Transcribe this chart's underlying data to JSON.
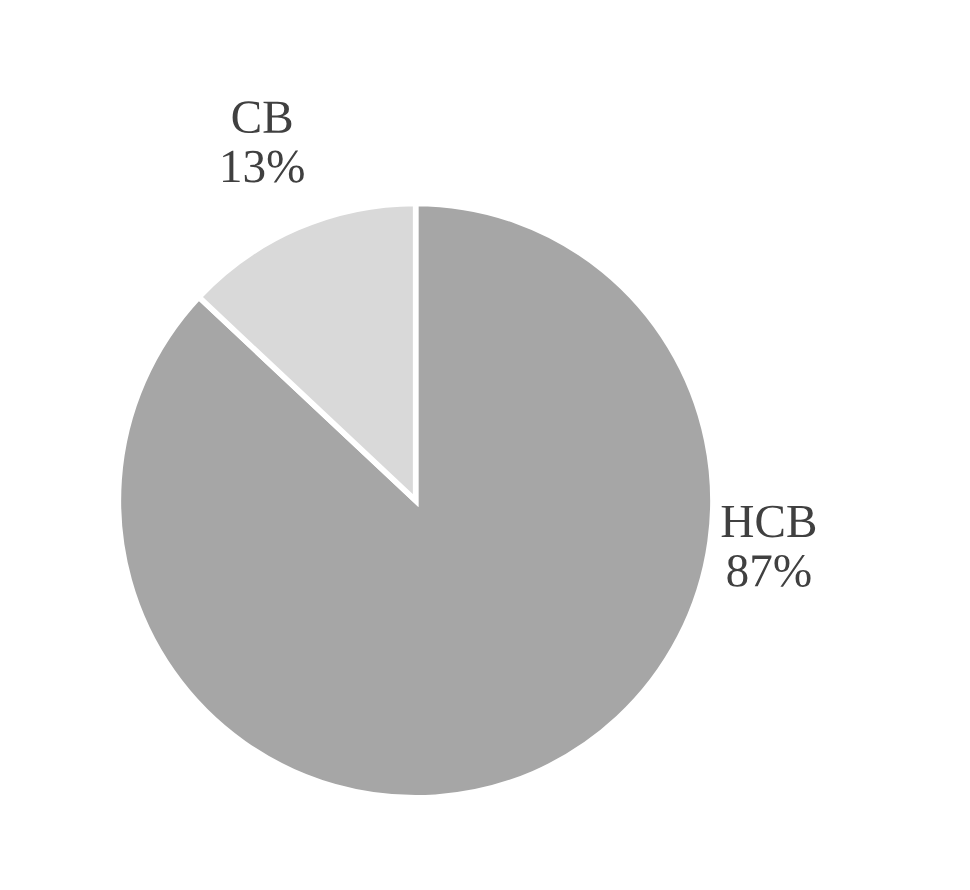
{
  "chart_data": {
    "type": "pie",
    "categories": [
      "HCB",
      "CB"
    ],
    "values": [
      87,
      13
    ],
    "colors": [
      "#a6a6a6",
      "#d9d9d9"
    ],
    "value_labels": [
      "87%",
      "13%"
    ]
  }
}
